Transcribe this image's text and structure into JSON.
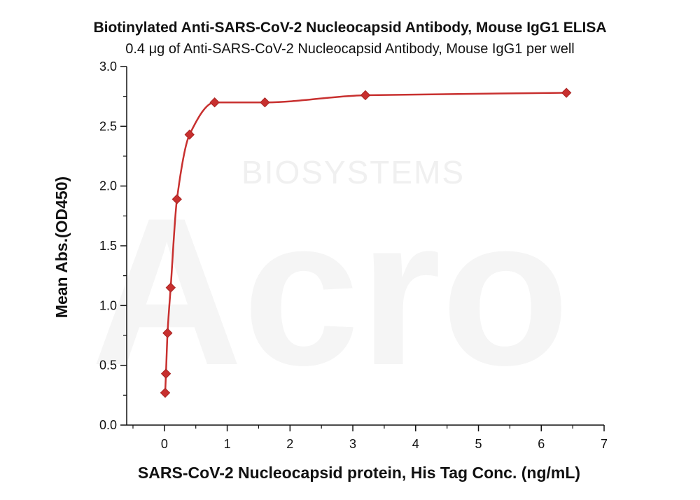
{
  "chart_data": {
    "type": "scatter",
    "title": "Biotinylated Anti-SARS-CoV-2 Nucleocapsid Antibody, Mouse IgG1 ELISA",
    "subtitle": "0.4 μg of Anti-SARS-CoV-2 Nucleocapsid Antibody, Mouse IgG1 per well",
    "xlabel": "SARS-CoV-2 Nucleocapsid protein, His Tag Conc. (ng/mL)",
    "ylabel": "Mean Abs.(OD450)",
    "xlim": [
      -0.6,
      7
    ],
    "ylim": [
      0,
      3
    ],
    "xticks": [
      "0",
      "1",
      "2",
      "3",
      "4",
      "5",
      "6",
      "7"
    ],
    "yticks": [
      "0.0",
      "0.5",
      "1.0",
      "1.5",
      "2.0",
      "2.5",
      "3.0"
    ],
    "grid": false,
    "marker": "diamond",
    "series_color": "#c8302f",
    "series": [
      {
        "x": [
          0.0125,
          0.025,
          0.05,
          0.1,
          0.2,
          0.4,
          0.8,
          1.6,
          3.2,
          6.4
        ],
        "y": [
          0.27,
          0.43,
          0.77,
          1.15,
          1.89,
          2.43,
          2.7,
          2.7,
          2.76,
          2.78
        ]
      }
    ],
    "fit_curve": true,
    "watermark_lines": [
      "BIOSYSTEMS",
      "Acro"
    ]
  }
}
